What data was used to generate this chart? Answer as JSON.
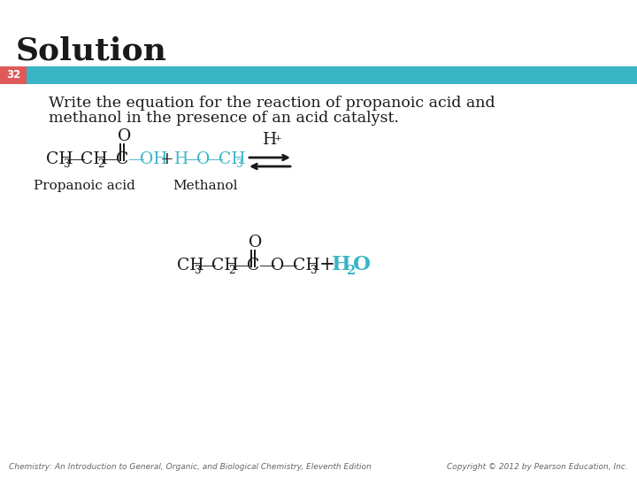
{
  "title": "Solution",
  "title_fontsize": 26,
  "slide_number": "32",
  "slide_number_bg": "#e05a5a",
  "slide_number_color": "#ffffff",
  "banner_color": "#3ab5c6",
  "background_color": "#ffffff",
  "question_line1": "Write the equation for the reaction of propanoic acid and",
  "question_line2": "methanol in the presence of an acid catalyst.",
  "question_fontsize": 12.5,
  "teal_color": "#3ab5c6",
  "black_color": "#1a1a1a",
  "footer_left": "Chemistry: An Introduction to General, Organic, and Biological Chemistry, Eleventh Edition",
  "footer_right": "Copyright © 2012 by Pearson Education, Inc.",
  "footer_fontsize": 6.5
}
